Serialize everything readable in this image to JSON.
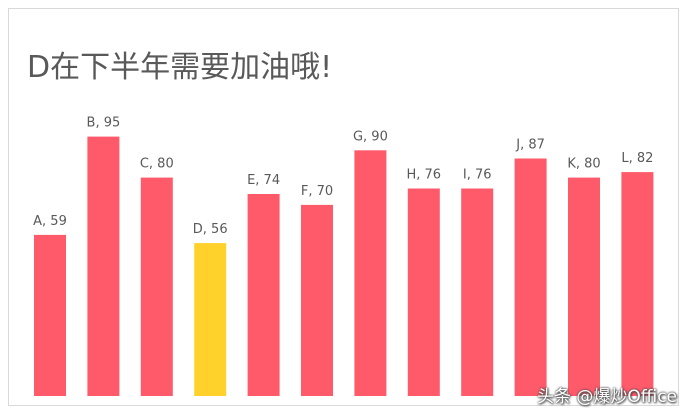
{
  "chart_data": {
    "type": "bar",
    "title": "D在下半年需要加油哦!",
    "categories": [
      "A",
      "B",
      "C",
      "D",
      "E",
      "F",
      "G",
      "H",
      "I",
      "J",
      "K",
      "L"
    ],
    "values": [
      59,
      95,
      80,
      56,
      74,
      70,
      90,
      76,
      76,
      87,
      80,
      82
    ],
    "data_labels": [
      "A, 59",
      "B, 95",
      "C, 80",
      "D, 56",
      "E, 74",
      "F, 70",
      "G, 90",
      "H, 76",
      "I, 76",
      "J, 87",
      "K, 80",
      "L, 82"
    ],
    "highlight_category": "D",
    "xlabel": "",
    "ylabel": "",
    "grid": false,
    "legend": "none",
    "colors": {
      "bar": "#ff5a6a",
      "highlight": "#ffd12a",
      "label": "#595959"
    }
  },
  "watermark": "头条 @爆炒Office"
}
